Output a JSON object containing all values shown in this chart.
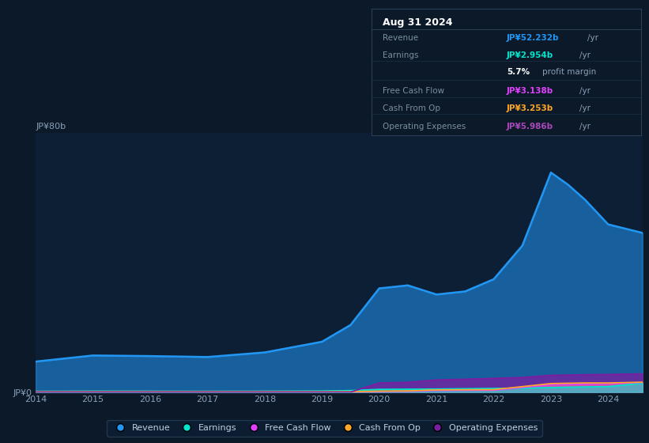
{
  "background_color": "#0b1929",
  "plot_bg_color": "#0d1f35",
  "grid_color": "#1a3048",
  "title_box": {
    "date": "Aug 31 2024",
    "rows": [
      {
        "label": "Revenue",
        "value": "JP¥52.232b",
        "unit": "/yr",
        "value_color": "#2296f3",
        "label_color": "#7a8fa0"
      },
      {
        "label": "Earnings",
        "value": "JP¥2.954b",
        "unit": "/yr",
        "value_color": "#00e5cc",
        "label_color": "#7a8fa0"
      },
      {
        "label": "",
        "value": "5.7%",
        "unit": "profit margin",
        "value_color": "#ffffff",
        "label_color": "#7a8fa0"
      },
      {
        "label": "Free Cash Flow",
        "value": "JP¥3.138b",
        "unit": "/yr",
        "value_color": "#e040fb",
        "label_color": "#7a8fa0"
      },
      {
        "label": "Cash From Op",
        "value": "JP¥3.253b",
        "unit": "/yr",
        "value_color": "#ffa726",
        "label_color": "#7a8fa0"
      },
      {
        "label": "Operating Expenses",
        "value": "JP¥5.986b",
        "unit": "/yr",
        "value_color": "#ab47bc",
        "label_color": "#7a8fa0"
      }
    ]
  },
  "years": [
    2014,
    2015,
    2016,
    2017,
    2018,
    2019,
    2019.5,
    2020,
    2020.5,
    2021,
    2021.5,
    2022,
    2022.5,
    2023,
    2023.3,
    2023.6,
    2024,
    2024.6
  ],
  "revenue": [
    10.0,
    12.0,
    11.8,
    11.5,
    13.0,
    16.5,
    22.0,
    34.0,
    35.0,
    32.0,
    33.0,
    37.0,
    48.0,
    72.0,
    68.0,
    63.0,
    55.0,
    52.2
  ],
  "earnings": [
    0.25,
    0.3,
    0.28,
    0.25,
    0.28,
    0.35,
    0.5,
    0.9,
    0.95,
    1.0,
    1.1,
    1.2,
    1.3,
    1.5,
    1.6,
    1.7,
    1.8,
    2.95
  ],
  "free_cash_flow": [
    0.05,
    0.05,
    0.05,
    0.05,
    0.05,
    0.05,
    0.1,
    0.2,
    0.25,
    0.5,
    0.55,
    0.6,
    1.5,
    2.5,
    2.6,
    2.7,
    2.8,
    3.14
  ],
  "cash_from_op": [
    0.1,
    0.1,
    0.1,
    0.1,
    0.1,
    0.1,
    0.15,
    0.3,
    0.4,
    0.7,
    0.75,
    0.8,
    1.8,
    2.8,
    2.9,
    3.0,
    3.0,
    3.25
  ],
  "operating_expenses": [
    0.0,
    0.0,
    0.0,
    0.0,
    0.0,
    0.0,
    0.0,
    3.0,
    3.2,
    4.0,
    4.2,
    4.5,
    4.8,
    5.5,
    5.6,
    5.7,
    5.8,
    5.99
  ],
  "revenue_color": "#2296f3",
  "earnings_color": "#00e5cc",
  "free_cash_flow_color": "#e040fb",
  "cash_from_op_color": "#ffa726",
  "operating_expenses_color": "#7b1fa2",
  "ylim": [
    0,
    85
  ],
  "ytick_top_label": "JP¥80b",
  "ytick_bottom_label": "JP¥0",
  "xlabel_ticks": [
    2014,
    2015,
    2016,
    2017,
    2018,
    2019,
    2020,
    2021,
    2022,
    2023,
    2024
  ],
  "legend_labels": [
    "Revenue",
    "Earnings",
    "Free Cash Flow",
    "Cash From Op",
    "Operating Expenses"
  ],
  "legend_colors": [
    "#2296f3",
    "#00e5cc",
    "#e040fb",
    "#ffa726",
    "#7b1fa2"
  ]
}
